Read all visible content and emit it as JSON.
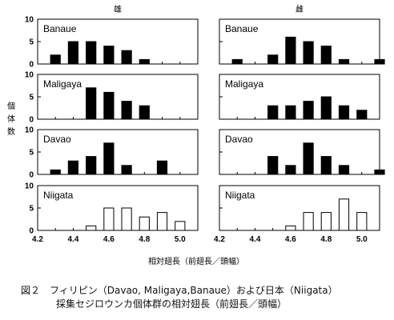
{
  "chart_data": {
    "type": "bar",
    "column_titles": [
      "雄",
      "雌"
    ],
    "ylabel": "個 体 数",
    "xlabel": "相対翅長（前翅長／頭幅）",
    "bin_width": 0.1,
    "xlim": [
      4.2,
      5.1
    ],
    "ylim": [
      0,
      10
    ],
    "x_ticks": [
      "4.2",
      "4.4",
      "4.6",
      "4.8",
      "5.0"
    ],
    "y_ticks": [
      "0",
      "5",
      "10"
    ],
    "panels": [
      {
        "label": "Banaue",
        "col": 0,
        "row": 0,
        "fill": "#000000",
        "x": [
          4.3,
          4.4,
          4.5,
          4.6,
          4.7,
          4.8
        ],
        "values": [
          2,
          5,
          5,
          4,
          3,
          1
        ]
      },
      {
        "label": "Banaue",
        "col": 1,
        "row": 0,
        "fill": "#000000",
        "x": [
          4.3,
          4.5,
          4.6,
          4.7,
          4.8,
          4.9,
          5.1
        ],
        "values": [
          1,
          2,
          6,
          5,
          4,
          1,
          1
        ]
      },
      {
        "label": "Maligaya",
        "col": 0,
        "row": 1,
        "fill": "#000000",
        "x": [
          4.5,
          4.6,
          4.7,
          4.8
        ],
        "values": [
          7,
          6,
          4,
          3
        ]
      },
      {
        "label": "Maligaya",
        "col": 1,
        "row": 1,
        "fill": "#000000",
        "x": [
          4.5,
          4.6,
          4.7,
          4.8,
          4.9,
          5.0
        ],
        "values": [
          3,
          3,
          4,
          5,
          3,
          2
        ]
      },
      {
        "label": "Davao",
        "col": 0,
        "row": 2,
        "fill": "#000000",
        "x": [
          4.3,
          4.4,
          4.5,
          4.6,
          4.7,
          4.9
        ],
        "values": [
          1,
          3,
          4,
          7,
          2,
          3
        ]
      },
      {
        "label": "Davao",
        "col": 1,
        "row": 2,
        "fill": "#000000",
        "x": [
          4.5,
          4.6,
          4.7,
          4.8,
          4.9,
          5.1
        ],
        "values": [
          4,
          2,
          7,
          4,
          2,
          1
        ]
      },
      {
        "label": "Niigata",
        "col": 0,
        "row": 3,
        "fill": "#ffffff",
        "x": [
          4.5,
          4.6,
          4.7,
          4.8,
          4.9,
          5.0
        ],
        "values": [
          1,
          5,
          5,
          3,
          4,
          2
        ]
      },
      {
        "label": "Niigata",
        "col": 1,
        "row": 3,
        "fill": "#ffffff",
        "x": [
          4.6,
          4.7,
          4.8,
          4.9,
          5.0
        ],
        "values": [
          1,
          4,
          4,
          7,
          4
        ]
      }
    ]
  },
  "caption": {
    "line1": "図２　フィリピン（Davao, Maligaya,Banaue）および日本（Niigata）",
    "line2": "採集セジロウンカ個体群の相対翅長（前翅長／頭幅）"
  }
}
